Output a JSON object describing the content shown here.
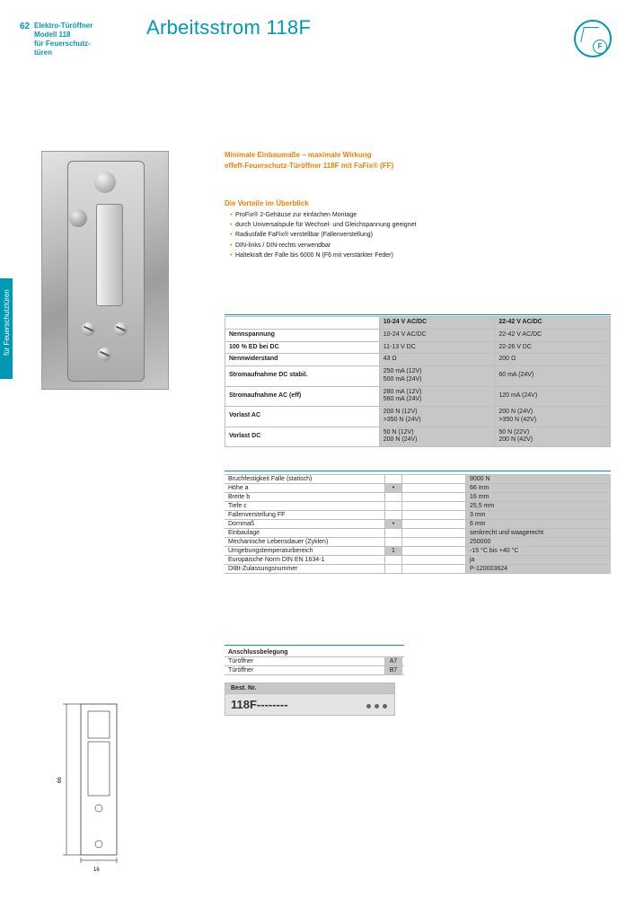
{
  "page_number": "62",
  "series": {
    "l1": "Elektro-Türöffner",
    "l2": "Modell 118",
    "l3": "für Feuerschutz-",
    "l4": "türen"
  },
  "title": "Arbeitsstrom 118F",
  "side_tab": "für Feuerschutztüren",
  "lead1": "Minimale Einbaumaße – maximale Wirkung",
  "lead2": "effeff-Feuerschutz-Türöffner 118F mit FaFix® (FF)",
  "benefits_h": "Die Vorteile im Überblick",
  "benefits": [
    "ProFix® 2-Gehäuse zur einfachen Montage",
    "durch Universalspule für Wechsel- und Gleichspannung geeignet",
    "Radiusfalle FaFix® verstellbar (Fallenverstellung)",
    "DIN-links / DIN-rechts verwendbar",
    "Haltekraft der Falle bis 6000 N (F6 mit verstärkter Feder)"
  ],
  "tech": {
    "headers": [
      "10-24 V AC/DC",
      "22-42 V AC/DC"
    ],
    "rows": [
      [
        "Nennspannung",
        "10-24 V AC/DC",
        "22-42 V AC/DC"
      ],
      [
        "100 % ED bei DC",
        "11-13 V DC",
        "22-26 V DC"
      ],
      [
        "Nennwiderstand",
        "43 Ω",
        "200 Ω"
      ],
      [
        "Stromaufnahme DC stabil.",
        "250 mA (12V)\n500 mA (24V)",
        "60 mA (24V)"
      ],
      [
        "Stromaufnahme AC (eff)",
        "280 mA (12V)\n560 mA (24V)",
        "120 mA (24V)"
      ],
      [
        "Vorlast AC",
        "200 N (12V)\n>350 N (24V)",
        "200 N (24V)\n>350 N (42V)"
      ],
      [
        "Vorlast DC",
        "50 N (12V)\n200 N (24V)",
        "50 N (22V)\n200 N (42V)"
      ]
    ]
  },
  "mech_rows": [
    {
      "label": "Bruchfestigkeit Falle (statisch)",
      "mark": "",
      "val": "9000 N"
    },
    {
      "label": "Höhe a",
      "mark": "•",
      "val": "66 mm"
    },
    {
      "label": "Breite b",
      "mark": "",
      "val": "16 mm"
    },
    {
      "label": "Tiefe c",
      "mark": "",
      "val": "25,5 mm"
    },
    {
      "label": "Fallenverstellung FF",
      "mark": "",
      "val": "3 mm"
    },
    {
      "label": "Dornmaß",
      "mark": "•",
      "val": "6 mm"
    },
    {
      "label": "Einbaulage",
      "mark": "",
      "val": "senkrecht und waagerecht"
    },
    {
      "label": "Mechanische Lebensdauer (Zyklen)",
      "mark": "",
      "val": "250000"
    },
    {
      "label": "Umgebungstemperaturbereich",
      "mark": "1",
      "val": "-15 °C bis +40 °C"
    },
    {
      "label": "Europäische Norm DIN EN 1634-1",
      "mark": "",
      "val": "ja"
    },
    {
      "label": "DIBt-Zulassungsnummer",
      "mark": "",
      "val": "P-120003624"
    }
  ],
  "conf_head": "Anschlussbelegung",
  "conf": [
    {
      "label": "Türöffner",
      "box": "A7"
    },
    {
      "label": "Türöffner",
      "box": "B7"
    }
  ],
  "order": {
    "h": "Best. Nr.",
    "v": "118F--------"
  },
  "colors": {
    "teal": "#0099b5",
    "orange": "#f08000",
    "grey": "#c7c7c7"
  }
}
